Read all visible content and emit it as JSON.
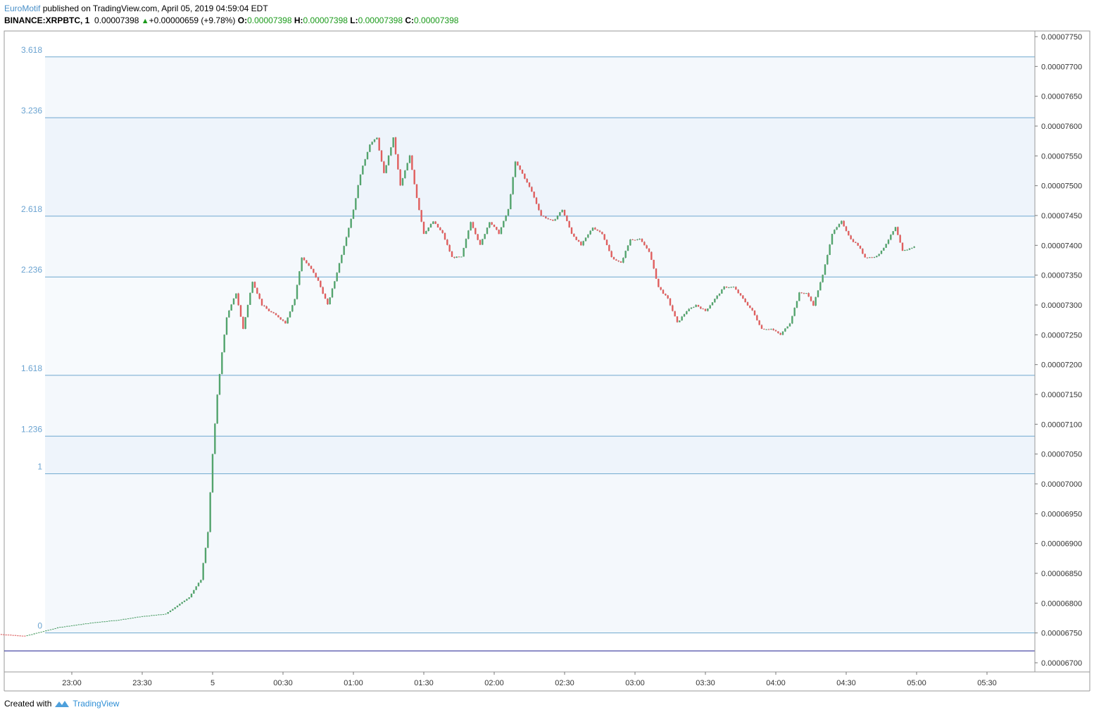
{
  "header": {
    "author": "EuroMotif",
    "published": " published on TradingView.com, April 05, 2019 04:59:04 EDT",
    "symbol": "BINANCE:XRPBTC, 1",
    "last": "0.00007398",
    "change": "+0.00000659 (+9.78%)",
    "o_label": "O:",
    "o": "0.00007398",
    "h_label": "H:",
    "h": "0.00007398",
    "l_label": "L:",
    "l": "0.00007398",
    "c_label": "C:",
    "c": "0.00007398"
  },
  "footer": {
    "created": "Created with",
    "brand": "TradingView",
    "logo_icon": "tradingview-logo-icon"
  },
  "colors": {
    "up": "#53a46d",
    "down": "#e05e5e",
    "fib_line": "#6fa8cf",
    "fib_fill": "#eef4fb",
    "fib_label": "#6aa3d1",
    "price_line": "#1c1c8f"
  },
  "chart_data": {
    "type": "candlestick",
    "symbol": "BINANCE:XRPBTC",
    "interval": "1",
    "ylim": [
      6.7e-05,
      7.75e-05
    ],
    "y_ticks": [
      "0.00007750",
      "0.00007700",
      "0.00007650",
      "0.00007600",
      "0.00007550",
      "0.00007500",
      "0.00007450",
      "0.00007400",
      "0.00007350",
      "0.00007300",
      "0.00007250",
      "0.00007200",
      "0.00007150",
      "0.00007100",
      "0.00007050",
      "0.00007000",
      "0.00006950",
      "0.00006900",
      "0.00006850",
      "0.00006800",
      "0.00006750",
      "0.00006700"
    ],
    "x_ticks": [
      "23:00",
      "23:30",
      "5",
      "00:30",
      "01:00",
      "01:30",
      "02:00",
      "02:30",
      "03:00",
      "03:30",
      "04:00",
      "04:30",
      "05:00",
      "05:30"
    ],
    "x_start_time": "22:29",
    "fib_levels": [
      {
        "label": "0",
        "price": 6.75e-05
      },
      {
        "label": "1",
        "price": 7.017e-05
      },
      {
        "label": "1.236",
        "price": 7.08e-05
      },
      {
        "label": "1.618",
        "price": 7.182e-05
      },
      {
        "label": "2.236",
        "price": 7.347e-05
      },
      {
        "label": "2.618",
        "price": 7.449e-05
      },
      {
        "label": "3.236",
        "price": 7.614e-05
      },
      {
        "label": "3.618",
        "price": 7.716e-05
      }
    ],
    "horizontal_line": 6.72e-05,
    "key_points": [
      [
        "22:29",
        6.748e-05
      ],
      [
        "22:40",
        6.745e-05
      ],
      [
        "22:55",
        6.76e-05
      ],
      [
        "23:10",
        6.768e-05
      ],
      [
        "23:20",
        6.772e-05
      ],
      [
        "23:30",
        6.778e-05
      ],
      [
        "23:40",
        6.782e-05
      ],
      [
        "23:50",
        6.81e-05
      ],
      [
        "23:55",
        6.84e-05
      ],
      [
        "23:58",
        6.92e-05
      ],
      [
        "00:00",
        7.05e-05
      ],
      [
        "00:02",
        7.15e-05
      ],
      [
        "00:04",
        7.22e-05
      ],
      [
        "00:06",
        7.28e-05
      ],
      [
        "00:10",
        7.32e-05
      ],
      [
        "00:13",
        7.26e-05
      ],
      [
        "00:17",
        7.34e-05
      ],
      [
        "00:21",
        7.3e-05
      ],
      [
        "00:24",
        7.29e-05
      ],
      [
        "00:28",
        7.28e-05
      ],
      [
        "00:31",
        7.27e-05
      ],
      [
        "00:35",
        7.31e-05
      ],
      [
        "00:38",
        7.38e-05
      ],
      [
        "00:42",
        7.36e-05
      ],
      [
        "00:45",
        7.34e-05
      ],
      [
        "00:49",
        7.3e-05
      ],
      [
        "00:52",
        7.34e-05
      ],
      [
        "00:56",
        7.4e-05
      ],
      [
        "01:00",
        7.46e-05
      ],
      [
        "01:03",
        7.52e-05
      ],
      [
        "01:07",
        7.57e-05
      ],
      [
        "01:10",
        7.58e-05
      ],
      [
        "01:13",
        7.52e-05
      ],
      [
        "01:17",
        7.58e-05
      ],
      [
        "01:20",
        7.5e-05
      ],
      [
        "01:24",
        7.55e-05
      ],
      [
        "01:27",
        7.48e-05
      ],
      [
        "01:30",
        7.42e-05
      ],
      [
        "01:34",
        7.44e-05
      ],
      [
        "01:38",
        7.42e-05
      ],
      [
        "01:42",
        7.38e-05
      ],
      [
        "01:46",
        7.38e-05
      ],
      [
        "01:50",
        7.44e-05
      ],
      [
        "01:54",
        7.4e-05
      ],
      [
        "01:58",
        7.44e-05
      ],
      [
        "02:02",
        7.42e-05
      ],
      [
        "02:06",
        7.46e-05
      ],
      [
        "02:09",
        7.54e-05
      ],
      [
        "02:12",
        7.52e-05
      ],
      [
        "02:16",
        7.49e-05
      ],
      [
        "02:20",
        7.45e-05
      ],
      [
        "02:25",
        7.44e-05
      ],
      [
        "02:29",
        7.46e-05
      ],
      [
        "02:33",
        7.42e-05
      ],
      [
        "02:37",
        7.4e-05
      ],
      [
        "02:42",
        7.43e-05
      ],
      [
        "02:46",
        7.42e-05
      ],
      [
        "02:50",
        7.38e-05
      ],
      [
        "02:54",
        7.37e-05
      ],
      [
        "02:58",
        7.41e-05
      ],
      [
        "03:02",
        7.41e-05
      ],
      [
        "03:06",
        7.39e-05
      ],
      [
        "03:10",
        7.33e-05
      ],
      [
        "03:14",
        7.31e-05
      ],
      [
        "03:18",
        7.27e-05
      ],
      [
        "03:22",
        7.29e-05
      ],
      [
        "03:26",
        7.3e-05
      ],
      [
        "03:30",
        7.29e-05
      ],
      [
        "03:34",
        7.31e-05
      ],
      [
        "03:38",
        7.33e-05
      ],
      [
        "03:42",
        7.33e-05
      ],
      [
        "03:46",
        7.31e-05
      ],
      [
        "03:50",
        7.29e-05
      ],
      [
        "03:54",
        7.26e-05
      ],
      [
        "03:58",
        7.26e-05
      ],
      [
        "04:02",
        7.25e-05
      ],
      [
        "04:06",
        7.27e-05
      ],
      [
        "04:10",
        7.32e-05
      ],
      [
        "04:13",
        7.32e-05
      ],
      [
        "04:16",
        7.3e-05
      ],
      [
        "04:20",
        7.35e-05
      ],
      [
        "04:24",
        7.42e-05
      ],
      [
        "04:28",
        7.44e-05
      ],
      [
        "04:32",
        7.41e-05
      ],
      [
        "04:35",
        7.4e-05
      ],
      [
        "04:38",
        7.38e-05
      ],
      [
        "04:42",
        7.38e-05
      ],
      [
        "04:45",
        7.39e-05
      ],
      [
        "04:48",
        7.41e-05
      ],
      [
        "04:51",
        7.43e-05
      ],
      [
        "04:54",
        7.39e-05
      ],
      [
        "04:59",
        7.398e-05
      ]
    ]
  }
}
